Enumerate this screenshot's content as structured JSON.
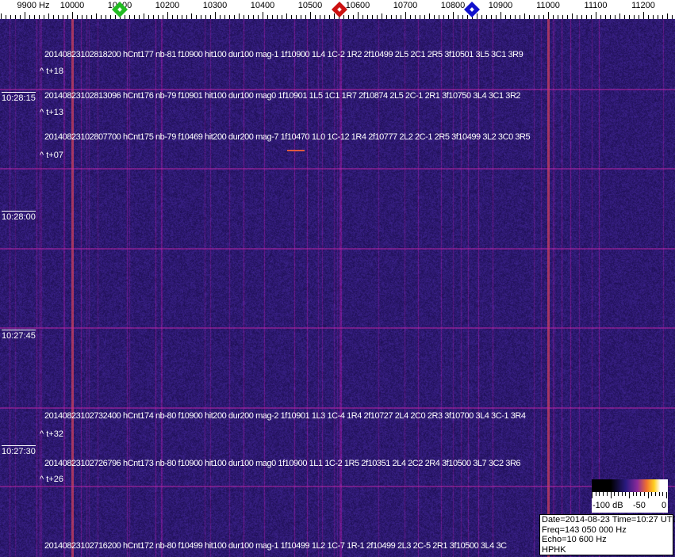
{
  "axis": {
    "unit_label": "9900 Hz",
    "ticks": [
      "10000",
      "10100",
      "10200",
      "10300",
      "10400",
      "10500",
      "10600",
      "10700",
      "10800",
      "10900",
      "11000",
      "11100",
      "11200"
    ],
    "markers": [
      {
        "name": "green-marker",
        "freq_hz": 10100,
        "color": "#22bb22"
      },
      {
        "name": "red-marker",
        "freq_hz": 10562,
        "color": "#cc1111"
      },
      {
        "name": "blue-marker",
        "freq_hz": 10840,
        "color": "#1111cc"
      }
    ]
  },
  "spectrogram": {
    "background_color": "#281c6e",
    "carrier_lines_hz": [
      10000,
      11000
    ],
    "time_labels": [
      "10:28:15",
      "10:28:00",
      "10:27:45",
      "10:27:30"
    ],
    "detections": [
      "20140823102818200 hCnt177 nb-81 f10900 hit100 dur100 mag-1 1f10900 1L4 1C-2 1R2 2f10499 2L5 2C1 2R5 3f10501 3L5 3C1 3R9",
      "20140823102813096 hCnt176 nb-79 f10901 hit100 dur100 mag0 1f10901 1L5 1C1 1R7 2f10874 2L5 2C-1 2R1 3f10750 3L4 3C1 3R2",
      "20140823102807700 hCnt175 nb-79 f10469 hit200 dur200 mag-7 1f10470 1L0 1C-12 1R4 2f10777 2L2 2C-1 2R5 3f10499 3L2 3C0 3R5",
      "20140823102732400 hCnt174 nb-80 f10900 hit200 dur200 mag-2 1f10901 1L3 1C-4 1R4 2f10727 2L4 2C0 2R3 3f10700 3L4 3C-1 3R4",
      "20140823102726796 hCnt173 nb-80 f10900 hit100 dur100 mag0 1f10900 1L1 1C-2 1R5 2f10351 2L4 2C2 2R4 3f10500 3L7 3C2 3R6",
      "20140823102716200 hCnt172 nb-80 f10499 hit100 dur100 mag-1 1f10499 1L2 1C-7 1R-1 2f10499 2L3 2C-5 2R1 3f10500 3L4 3C"
    ],
    "offsets": [
      "^ t+18",
      "^ t+13",
      "^ t+07",
      "^ t+32",
      "^ t+26"
    ]
  },
  "colorbar": {
    "labels": [
      "-100 dB",
      "-50",
      "0"
    ]
  },
  "info": {
    "date_time": "Date=2014-08-23 Time=10:27 UTC",
    "freq": "Freq=143 050 000 Hz",
    "echo": "Echo=10 600 Hz",
    "station": "HPHK"
  }
}
